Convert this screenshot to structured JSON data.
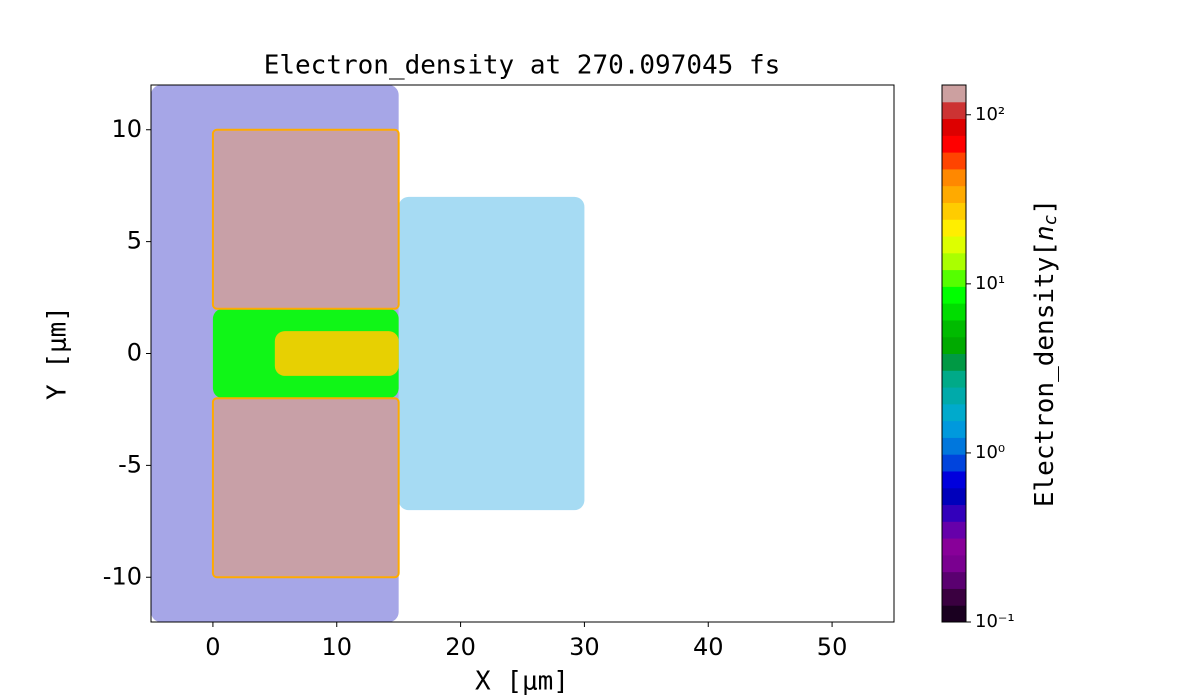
{
  "chart_data": {
    "type": "contour",
    "title": "Electron_density at 270.097045 fs",
    "xlabel": "X [μm]",
    "ylabel": "Y [μm]",
    "xlim": [
      -5,
      55
    ],
    "ylim": [
      -12,
      12
    ],
    "xticks": [
      0,
      10,
      20,
      30,
      40,
      50
    ],
    "yticks": [
      -10,
      -5,
      0,
      5,
      10
    ],
    "regions": [
      {
        "x": [
          -5,
          15
        ],
        "y": [
          -12,
          12
        ],
        "value": 0.5
      },
      {
        "x": [
          15,
          30
        ],
        "y": [
          -7,
          7
        ],
        "value": 1.5
      },
      {
        "x": [
          0,
          15
        ],
        "y": [
          -2,
          2
        ],
        "value": 8
      },
      {
        "x": [
          5,
          15
        ],
        "y": [
          -1,
          1
        ],
        "value": 30
      },
      {
        "x": [
          0,
          15
        ],
        "y": [
          2,
          10
        ],
        "value": 120
      },
      {
        "x": [
          0,
          15
        ],
        "y": [
          -10,
          -2
        ],
        "value": 120
      }
    ],
    "colorbar": {
      "label": {
        "text": "Electron_density[",
        "symbol": "n",
        "subscript": "c",
        "close": "]"
      },
      "log": true,
      "lim": [
        0.1,
        150
      ],
      "ticks": [
        {
          "value": 0.1,
          "label": "10⁻¹"
        },
        {
          "value": 1,
          "label": "10⁰"
        },
        {
          "value": 10,
          "label": "10¹"
        },
        {
          "value": 100,
          "label": "10²"
        }
      ],
      "colors": [
        "#1a0020",
        "#3a0040",
        "#5a0070",
        "#7a0090",
        "#880099",
        "#6600aa",
        "#3300bb",
        "#0000bb",
        "#0000dd",
        "#0044dd",
        "#0077dd",
        "#0099dd",
        "#00aacc",
        "#00aaaa",
        "#00aa88",
        "#009944",
        "#00aa00",
        "#00bb00",
        "#00dd00",
        "#00ff00",
        "#55ff00",
        "#aaff00",
        "#ddff00",
        "#ffee00",
        "#ffcc00",
        "#ffaa00",
        "#ff8800",
        "#ff4400",
        "#ff0000",
        "#dd0000",
        "#cc3333",
        "#cca0a0"
      ]
    }
  }
}
